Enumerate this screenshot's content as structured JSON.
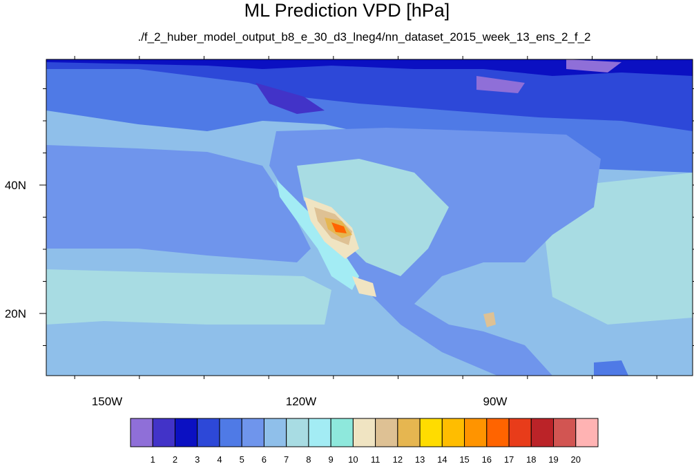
{
  "chart_data": {
    "type": "heatmap",
    "title": "ML Prediction VPD [hPa]",
    "subtitle": "./f_2_huber_model_output_b8_e_30_d3_lneg4/nn_dataset_2015_week_13_ens_2_f_2",
    "x_axis": {
      "range": [
        -165,
        -115
      ],
      "ticks": [
        {
          "value": -150,
          "label": "150W"
        },
        {
          "value": -120,
          "label": "120W"
        },
        {
          "value": -90,
          "label": "90W"
        }
      ]
    },
    "y_axis": {
      "range": [
        10,
        60
      ],
      "ticks": [
        {
          "value": 40,
          "label": "40N"
        },
        {
          "value": 20,
          "label": "20N"
        }
      ]
    },
    "colorbar": {
      "levels": [
        "1",
        "2",
        "3",
        "4",
        "5",
        "6",
        "7",
        "8",
        "9",
        "10",
        "11",
        "12",
        "13",
        "14",
        "15",
        "16",
        "17",
        "18",
        "19",
        "20"
      ],
      "colors": [
        "#8f6fd8",
        "#4233c8",
        "#0b10c2",
        "#2d48d8",
        "#4f7ae6",
        "#6f95ec",
        "#8fbfea",
        "#a8dce3",
        "#a3ecf4",
        "#8ee8dc",
        "#f0e4c2",
        "#dec194",
        "#e6b650",
        "#ffdc00",
        "#ffbd00",
        "#ff9400",
        "#ff6400",
        "#e83c1a",
        "#bb2328",
        "#d25552",
        "#ffb3b3"
      ]
    },
    "grid": false
  }
}
